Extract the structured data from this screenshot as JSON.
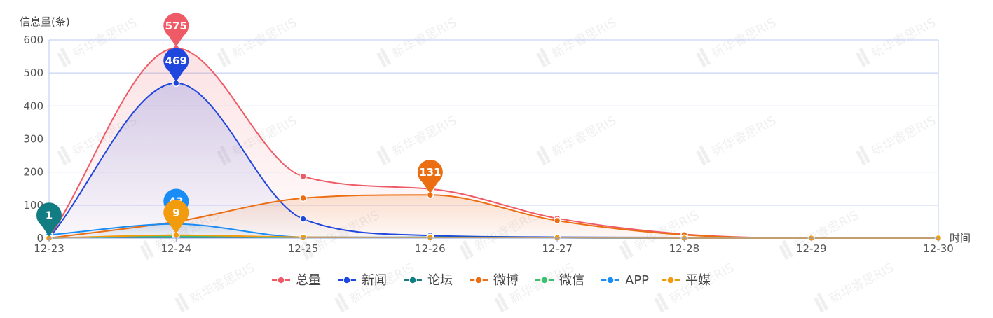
{
  "chart_data": {
    "type": "line",
    "y_axis_title": "信息量(条)",
    "x_axis_title": "时间",
    "categories": [
      "12-23",
      "12-24",
      "12-25",
      "12-26",
      "12-27",
      "12-28",
      "12-29",
      "12-30"
    ],
    "y_ticks": [
      0,
      100,
      200,
      300,
      400,
      500,
      600
    ],
    "ylim": [
      0,
      600
    ],
    "grid": true,
    "legend_position": "bottom",
    "series": [
      {
        "name": "总量",
        "color": "#ee5b66",
        "values": [
          1,
          575,
          187,
          149,
          60,
          12,
          0,
          0
        ],
        "area": true
      },
      {
        "name": "新闻",
        "color": "#1f47dd",
        "values": [
          0,
          469,
          58,
          8,
          3,
          2,
          0,
          0
        ],
        "area": true
      },
      {
        "name": "论坛",
        "color": "#117c82",
        "values": [
          1,
          2,
          1,
          3,
          2,
          1,
          0,
          0
        ],
        "area": false
      },
      {
        "name": "微博",
        "color": "#ec6e12",
        "values": [
          0,
          50,
          121,
          131,
          53,
          10,
          0,
          0
        ],
        "area": true
      },
      {
        "name": "微信",
        "color": "#3cbf6f",
        "values": [
          0,
          6,
          2,
          1,
          1,
          0,
          0,
          0
        ],
        "area": false
      },
      {
        "name": "APP",
        "color": "#1a8cf5",
        "values": [
          10,
          43,
          3,
          2,
          1,
          0,
          0,
          0
        ],
        "area": true
      },
      {
        "name": "平媒",
        "color": "#f29b0c",
        "values": [
          0,
          9,
          3,
          2,
          1,
          0,
          0,
          0
        ],
        "area": true
      }
    ],
    "markers": [
      {
        "series": "总量",
        "index": 1,
        "label": "575"
      },
      {
        "series": "新闻",
        "index": 1,
        "label": "469"
      },
      {
        "series": "APP",
        "index": 1,
        "label": "43"
      },
      {
        "series": "平媒",
        "index": 1,
        "label": "9"
      },
      {
        "series": "论坛",
        "index": 0,
        "label": "1"
      },
      {
        "series": "微博",
        "index": 3,
        "label": "131"
      }
    ],
    "watermark_text": "新华睿思RIS"
  }
}
